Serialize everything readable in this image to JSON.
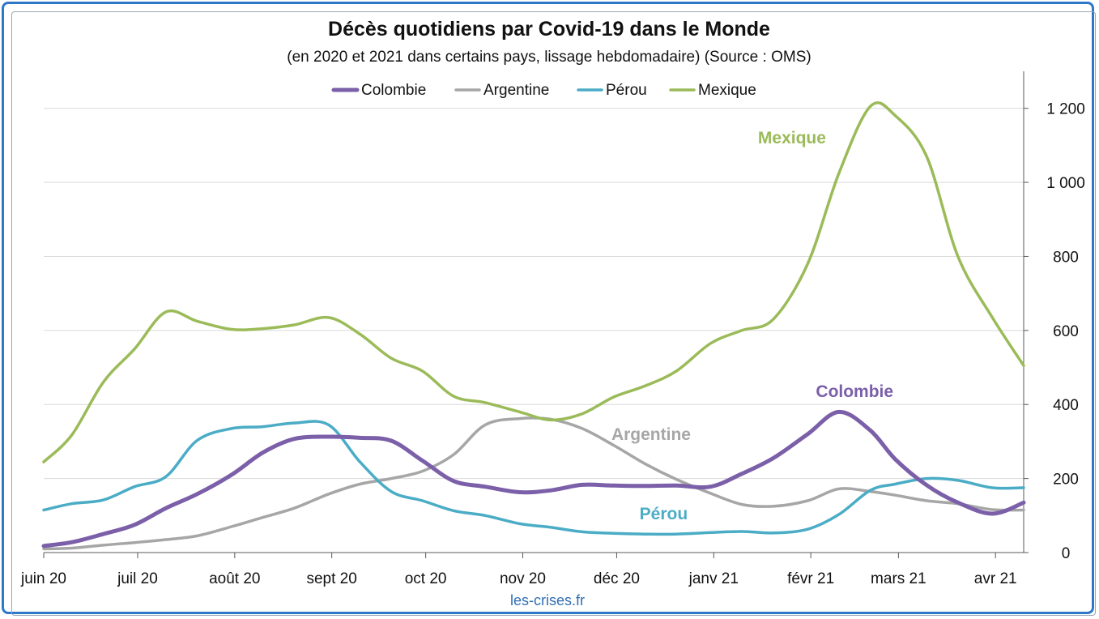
{
  "chart_data": {
    "type": "line",
    "title": "Décès quotidiens par Covid-19 dans le Monde",
    "subtitle": "(en 2020 et 2021 dans certains pays, lissage hebdomadaire) (Source : OMS)",
    "x_tick_labels": [
      "juin 20",
      "juil 20",
      "août 20",
      "sept 20",
      "oct 20",
      "nov 20",
      "déc 20",
      "janv 21",
      "févr 21",
      "mars 21",
      "avr 21"
    ],
    "x_range": [
      "2020-06-01",
      "2021-04-10"
    ],
    "y_ticks": [
      0,
      200,
      400,
      600,
      800,
      1000,
      1200
    ],
    "y_tick_labels": [
      "0",
      "200",
      "400",
      "600",
      "800",
      "1 000",
      "1 200"
    ],
    "ylim": [
      0,
      1300
    ],
    "y_axis_side": "right",
    "grid": "horizontal",
    "legend_position": "top",
    "series": [
      {
        "name": "Colombie",
        "color": "#7b5fa8",
        "points": [
          [
            "2020-06-01",
            18
          ],
          [
            "2020-06-10",
            28
          ],
          [
            "2020-06-20",
            50
          ],
          [
            "2020-06-30",
            75
          ],
          [
            "2020-07-10",
            120
          ],
          [
            "2020-07-20",
            158
          ],
          [
            "2020-07-31",
            210
          ],
          [
            "2020-08-10",
            270
          ],
          [
            "2020-08-20",
            307
          ],
          [
            "2020-08-31",
            313
          ],
          [
            "2020-09-10",
            310
          ],
          [
            "2020-09-20",
            302
          ],
          [
            "2020-09-30",
            248
          ],
          [
            "2020-10-10",
            193
          ],
          [
            "2020-10-20",
            178
          ],
          [
            "2020-10-31",
            163
          ],
          [
            "2020-11-10",
            168
          ],
          [
            "2020-11-20",
            183
          ],
          [
            "2020-11-30",
            181
          ],
          [
            "2020-12-10",
            180
          ],
          [
            "2020-12-20",
            181
          ],
          [
            "2020-12-31",
            178
          ],
          [
            "2021-01-10",
            213
          ],
          [
            "2021-01-20",
            255
          ],
          [
            "2021-01-31",
            320
          ],
          [
            "2021-02-10",
            380
          ],
          [
            "2021-02-20",
            330
          ],
          [
            "2021-02-28",
            252
          ],
          [
            "2021-03-10",
            182
          ],
          [
            "2021-03-20",
            135
          ],
          [
            "2021-03-31",
            105
          ],
          [
            "2021-04-10",
            135
          ]
        ]
      },
      {
        "name": "Argentine",
        "color": "#a6a6a6",
        "points": [
          [
            "2020-06-01",
            10
          ],
          [
            "2020-06-10",
            12
          ],
          [
            "2020-06-20",
            20
          ],
          [
            "2020-06-30",
            27
          ],
          [
            "2020-07-10",
            35
          ],
          [
            "2020-07-20",
            45
          ],
          [
            "2020-07-31",
            70
          ],
          [
            "2020-08-10",
            95
          ],
          [
            "2020-08-20",
            120
          ],
          [
            "2020-08-31",
            158
          ],
          [
            "2020-09-10",
            185
          ],
          [
            "2020-09-20",
            200
          ],
          [
            "2020-09-30",
            220
          ],
          [
            "2020-10-10",
            265
          ],
          [
            "2020-10-20",
            345
          ],
          [
            "2020-10-31",
            362
          ],
          [
            "2020-11-10",
            360
          ],
          [
            "2020-11-20",
            335
          ],
          [
            "2020-11-30",
            290
          ],
          [
            "2020-12-10",
            240
          ],
          [
            "2020-12-20",
            198
          ],
          [
            "2020-12-31",
            160
          ],
          [
            "2021-01-10",
            130
          ],
          [
            "2021-01-20",
            125
          ],
          [
            "2021-01-31",
            140
          ],
          [
            "2021-02-10",
            172
          ],
          [
            "2021-02-20",
            165
          ],
          [
            "2021-02-28",
            155
          ],
          [
            "2021-03-10",
            140
          ],
          [
            "2021-03-20",
            132
          ],
          [
            "2021-03-31",
            116
          ],
          [
            "2021-04-10",
            115
          ]
        ]
      },
      {
        "name": "Pérou",
        "color": "#4bacc6",
        "points": [
          [
            "2020-06-01",
            115
          ],
          [
            "2020-06-10",
            132
          ],
          [
            "2020-06-20",
            142
          ],
          [
            "2020-06-30",
            178
          ],
          [
            "2020-07-10",
            205
          ],
          [
            "2020-07-20",
            303
          ],
          [
            "2020-07-31",
            335
          ],
          [
            "2020-08-10",
            340
          ],
          [
            "2020-08-20",
            350
          ],
          [
            "2020-08-31",
            345
          ],
          [
            "2020-09-10",
            245
          ],
          [
            "2020-09-20",
            165
          ],
          [
            "2020-09-30",
            140
          ],
          [
            "2020-10-10",
            113
          ],
          [
            "2020-10-20",
            100
          ],
          [
            "2020-10-31",
            78
          ],
          [
            "2020-11-10",
            68
          ],
          [
            "2020-11-20",
            56
          ],
          [
            "2020-11-30",
            52
          ],
          [
            "2020-12-10",
            50
          ],
          [
            "2020-12-20",
            50
          ],
          [
            "2020-12-31",
            54
          ],
          [
            "2021-01-10",
            57
          ],
          [
            "2021-01-20",
            53
          ],
          [
            "2021-01-31",
            63
          ],
          [
            "2021-02-10",
            103
          ],
          [
            "2021-02-20",
            168
          ],
          [
            "2021-02-28",
            185
          ],
          [
            "2021-03-10",
            200
          ],
          [
            "2021-03-20",
            195
          ],
          [
            "2021-03-31",
            175
          ],
          [
            "2021-04-10",
            175
          ]
        ]
      },
      {
        "name": "Mexique",
        "color": "#9bbb59",
        "points": [
          [
            "2020-06-01",
            245
          ],
          [
            "2020-06-10",
            318
          ],
          [
            "2020-06-20",
            460
          ],
          [
            "2020-06-30",
            550
          ],
          [
            "2020-07-10",
            650
          ],
          [
            "2020-07-20",
            625
          ],
          [
            "2020-07-31",
            603
          ],
          [
            "2020-08-10",
            605
          ],
          [
            "2020-08-20",
            615
          ],
          [
            "2020-08-31",
            635
          ],
          [
            "2020-09-10",
            590
          ],
          [
            "2020-09-20",
            525
          ],
          [
            "2020-09-30",
            490
          ],
          [
            "2020-10-10",
            422
          ],
          [
            "2020-10-20",
            405
          ],
          [
            "2020-10-31",
            380
          ],
          [
            "2020-11-10",
            358
          ],
          [
            "2020-11-20",
            375
          ],
          [
            "2020-11-30",
            420
          ],
          [
            "2020-12-10",
            450
          ],
          [
            "2020-12-20",
            490
          ],
          [
            "2020-12-31",
            565
          ],
          [
            "2021-01-10",
            600
          ],
          [
            "2021-01-20",
            630
          ],
          [
            "2021-01-31",
            780
          ],
          [
            "2021-02-10",
            1025
          ],
          [
            "2021-02-20",
            1205
          ],
          [
            "2021-02-28",
            1180
          ],
          [
            "2021-03-10",
            1070
          ],
          [
            "2021-03-20",
            800
          ],
          [
            "2021-03-31",
            635
          ],
          [
            "2021-04-10",
            505
          ]
        ]
      }
    ],
    "annotations": [
      {
        "text": "Mexique",
        "series": "Mexique",
        "x": "2021-01-26",
        "y": 1120
      },
      {
        "text": "Colombie",
        "series": "Colombie",
        "x": "2021-02-15",
        "y": 435
      },
      {
        "text": "Argentine",
        "series": "Argentine",
        "x": "2020-12-12",
        "y": 320
      },
      {
        "text": "Pérou",
        "series": "Pérou",
        "x": "2020-12-16",
        "y": 105
      }
    ]
  },
  "footer": {
    "credit": "les-crises.fr"
  }
}
